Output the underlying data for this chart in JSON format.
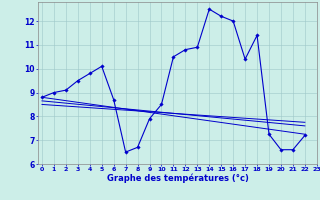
{
  "title": "Graphe des températures (°c)",
  "background_color": "#cceee8",
  "line_color": "#0000cc",
  "ylim": [
    6,
    12.8
  ],
  "yticks": [
    6,
    7,
    8,
    9,
    10,
    11,
    12
  ],
  "x_labels": [
    "0",
    "1",
    "2",
    "3",
    "4",
    "5",
    "6",
    "7",
    "8",
    "9",
    "10",
    "11",
    "12",
    "13",
    "14",
    "15",
    "16",
    "17",
    "18",
    "19",
    "20",
    "21",
    "22",
    "23"
  ],
  "main_data": [
    [
      0,
      8.8
    ],
    [
      1,
      9.0
    ],
    [
      2,
      9.1
    ],
    [
      3,
      9.5
    ],
    [
      4,
      9.8
    ],
    [
      5,
      10.1
    ],
    [
      6,
      8.7
    ],
    [
      7,
      6.5
    ],
    [
      8,
      6.7
    ],
    [
      9,
      7.9
    ],
    [
      10,
      8.5
    ],
    [
      11,
      10.5
    ],
    [
      12,
      10.8
    ],
    [
      13,
      10.9
    ],
    [
      14,
      12.5
    ],
    [
      15,
      12.2
    ],
    [
      16,
      12.0
    ],
    [
      17,
      10.4
    ],
    [
      18,
      11.4
    ],
    [
      19,
      7.25
    ],
    [
      20,
      6.6
    ],
    [
      21,
      6.6
    ],
    [
      22,
      7.2
    ]
  ],
  "trend_lines": [
    [
      [
        0,
        8.8
      ],
      [
        22,
        7.25
      ]
    ],
    [
      [
        0,
        8.65
      ],
      [
        22,
        7.6
      ]
    ],
    [
      [
        0,
        8.5
      ],
      [
        22,
        7.75
      ]
    ]
  ]
}
